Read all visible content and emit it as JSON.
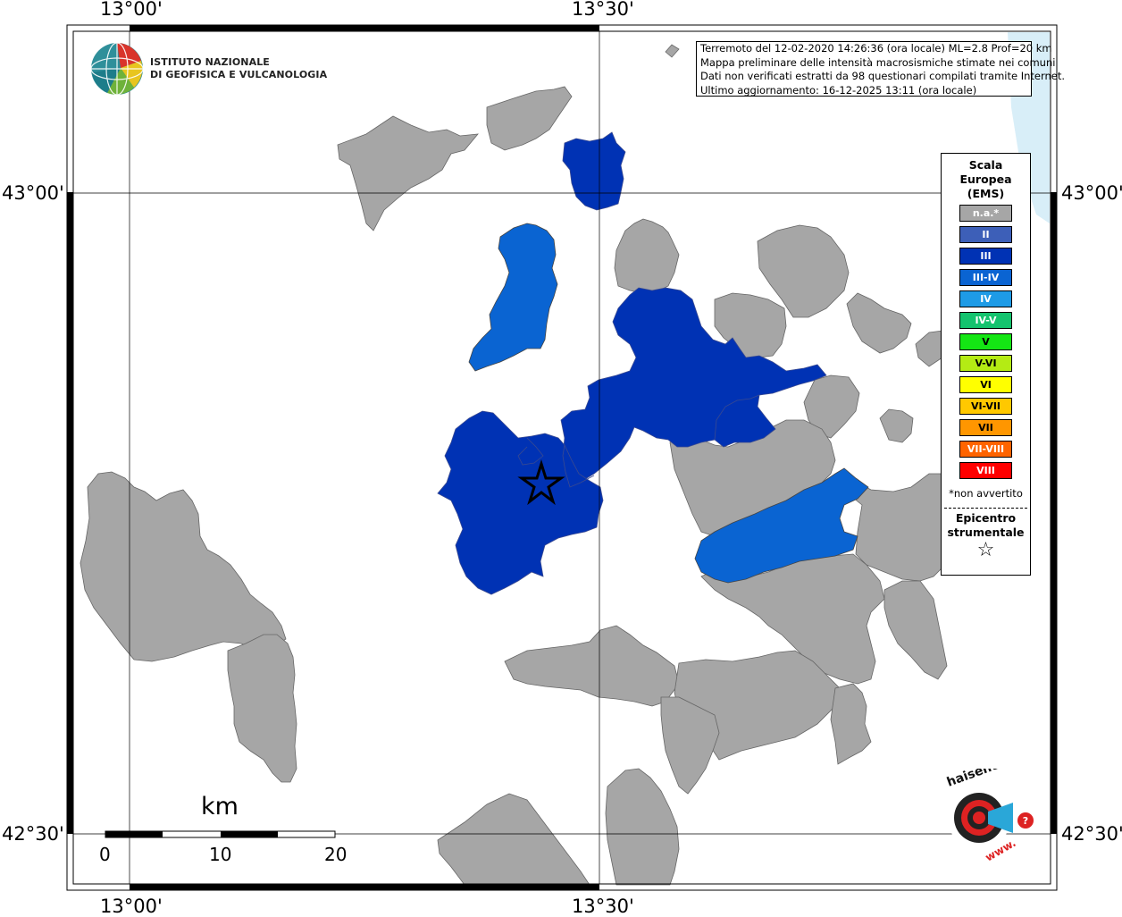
{
  "coords": {
    "top_left": "13°00'",
    "top_right": "13°30'",
    "bottom_left": "13°00'",
    "bottom_right": "13°30'",
    "left_top": "43°00'",
    "left_bottom": "42°30'",
    "right_top": "43°00'",
    "right_bottom": "42°30'"
  },
  "info": {
    "line1": "Terremoto del 12-02-2020 14:26:36 (ora locale) ML=2.8 Prof=20 km",
    "line2": "Mappa preliminare delle intensità macrosismiche stimate nei comuni",
    "line3": "Dati non verificati estratti da 98 questionari compilati tramite Internet.",
    "line4": "Ultimo aggiornamento: 16-12-2025 13:11 (ora locale)"
  },
  "ingv": {
    "line1": "ISTITUTO NAZIONALE",
    "line2": "DI GEOFISICA E VULCANOLOGIA"
  },
  "legend": {
    "title1": "Scala",
    "title2": "Europea",
    "title3": "(EMS)",
    "items": [
      {
        "label": "n.a.*",
        "color": "#a6a6a6"
      },
      {
        "label": "II",
        "color": "#3d5fb8"
      },
      {
        "label": "III",
        "color": "#0032b4"
      },
      {
        "label": "III-IV",
        "color": "#0a64d2"
      },
      {
        "label": "IV",
        "color": "#1e9be6"
      },
      {
        "label": "IV-V",
        "color": "#14c36e"
      },
      {
        "label": "V",
        "color": "#14e614"
      },
      {
        "label": "V-VI",
        "color": "#b4eb14"
      },
      {
        "label": "VI",
        "color": "#ffff00"
      },
      {
        "label": "VI-VII",
        "color": "#ffc800"
      },
      {
        "label": "VII",
        "color": "#ff9600"
      },
      {
        "label": "VII-VIII",
        "color": "#ff6400"
      },
      {
        "label": "VIII",
        "color": "#ff0000"
      }
    ],
    "note": "*non avvertito",
    "epi1": "Epicentro",
    "epi2": "strumentale",
    "epi_symbol": "☆"
  },
  "scale": {
    "unit": "km",
    "labels": [
      "0",
      "10",
      "20"
    ]
  },
  "logo_hsit": {
    "text": "haisentitoilterremoto.it",
    "www": "www."
  },
  "colors": {
    "na": "#a6a6a6",
    "iii": "#0032b4",
    "iii_iv": "#0a64d2",
    "sea": "#d8eef8"
  }
}
